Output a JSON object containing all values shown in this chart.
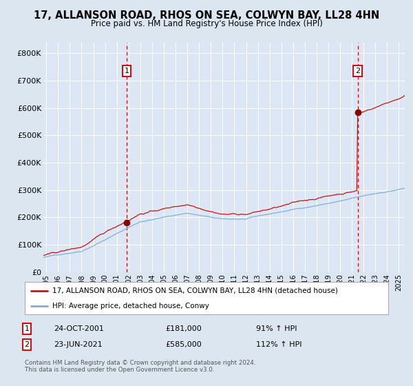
{
  "title1": "17, ALLANSON ROAD, RHOS ON SEA, COLWYN BAY, LL28 4HN",
  "title2": "Price paid vs. HM Land Registry's House Price Index (HPI)",
  "bg_color": "#dce6f0",
  "plot_bg_color": "#dce6f4",
  "grid_color": "#ffffff",
  "red_line_color": "#cc0000",
  "blue_line_color": "#6699cc",
  "marker1_x": 2001.833,
  "marker1_price": 181000,
  "marker2_x": 2021.5,
  "marker2_price": 585000,
  "legend_entry1": "17, ALLANSON ROAD, RHOS ON SEA, COLWYN BAY, LL28 4HN (detached house)",
  "legend_entry2": "HPI: Average price, detached house, Conwy",
  "table_row1": [
    "1",
    "24-OCT-2001",
    "£181,000",
    "91% ↑ HPI"
  ],
  "table_row2": [
    "2",
    "23-JUN-2021",
    "£585,000",
    "112% ↑ HPI"
  ],
  "footer": "Contains HM Land Registry data © Crown copyright and database right 2024.\nThis data is licensed under the Open Government Licence v3.0.",
  "ylim": [
    0,
    840000
  ],
  "yticks": [
    0,
    100000,
    200000,
    300000,
    400000,
    500000,
    600000,
    700000,
    800000
  ],
  "xstart": 1994.75,
  "xend": 2025.5
}
